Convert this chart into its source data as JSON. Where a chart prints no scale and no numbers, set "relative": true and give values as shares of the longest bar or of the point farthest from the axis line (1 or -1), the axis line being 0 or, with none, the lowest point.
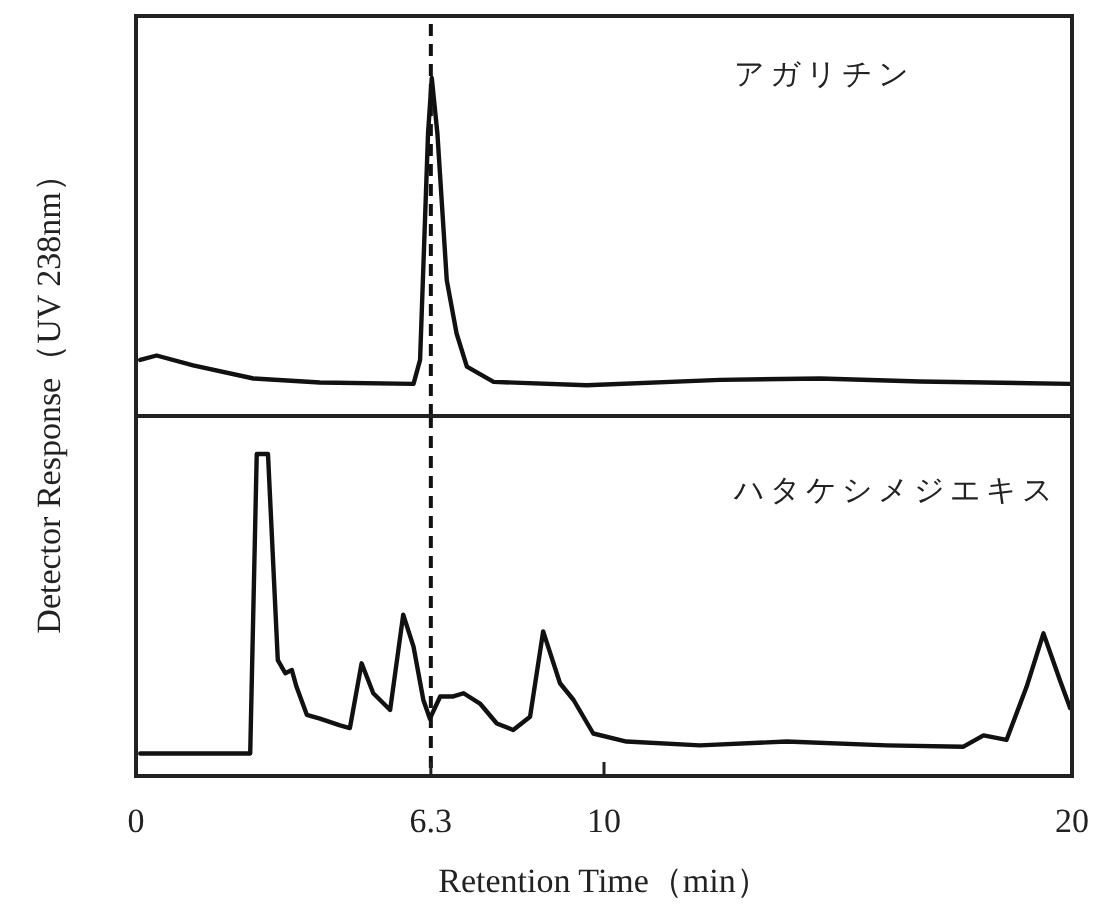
{
  "chart_data": [
    {
      "type": "line",
      "relative": true,
      "ylabel": "Detector Response（UV 238nm）",
      "annotations": [
        "アガリチン"
      ],
      "xlim": [
        0,
        20
      ],
      "xticks": [
        0,
        6.3,
        10,
        20
      ],
      "tick_labels": false,
      "line_style": "solid",
      "marker": "none",
      "ref_lines": [
        {
          "axis": "x",
          "value": 6.3,
          "line_style": "dashed"
        }
      ],
      "series": [
        {
          "color": "#111111",
          "x": [
            0.09,
            0.44,
            1.22,
            2.51,
            3.93,
            5.93,
            6.07,
            6.24,
            6.32,
            6.44,
            6.64,
            6.85,
            7.07,
            7.64,
            9.63,
            12.48,
            14.62,
            16.75,
            19.96
          ],
          "values": [
            0.166,
            0.179,
            0.15,
            0.111,
            0.099,
            0.095,
            0.166,
            0.836,
            1.0,
            0.836,
            0.402,
            0.244,
            0.146,
            0.101,
            0.091,
            0.107,
            0.111,
            0.102,
            0.095
          ]
        }
      ]
    },
    {
      "type": "line",
      "relative": true,
      "xlabel": "Retention Time（min）",
      "annotations": [
        "ハタケシメジエキス"
      ],
      "xlim": [
        0,
        20
      ],
      "xticks": [
        0,
        6.3,
        10,
        20
      ],
      "line_style": "solid",
      "marker": "none",
      "ref_lines": [
        {
          "axis": "x",
          "value": 6.3,
          "line_style": "dashed"
        }
      ],
      "series": [
        {
          "color": "#111111",
          "x": [
            0.09,
            2.44,
            2.58,
            2.82,
            3.03,
            3.19,
            3.33,
            3.43,
            3.65,
            3.93,
            4.36,
            4.57,
            4.82,
            5.07,
            5.43,
            5.71,
            5.93,
            6.14,
            6.28,
            6.5,
            6.78,
            7.0,
            7.35,
            7.71,
            8.06,
            8.42,
            8.7,
            9.06,
            9.35,
            9.77,
            10.48,
            12.05,
            13.9,
            16.04,
            17.68,
            18.11,
            18.6,
            19.03,
            19.39,
            19.74,
            19.96
          ],
          "values": [
            0.07,
            0.07,
            1.0,
            1.0,
            0.36,
            0.319,
            0.329,
            0.277,
            0.19,
            0.178,
            0.157,
            0.149,
            0.35,
            0.257,
            0.205,
            0.501,
            0.402,
            0.236,
            0.178,
            0.247,
            0.247,
            0.257,
            0.225,
            0.163,
            0.143,
            0.184,
            0.449,
            0.288,
            0.236,
            0.132,
            0.107,
            0.095,
            0.107,
            0.095,
            0.091,
            0.126,
            0.112,
            0.277,
            0.443,
            0.298,
            0.211
          ]
        }
      ]
    }
  ]
}
